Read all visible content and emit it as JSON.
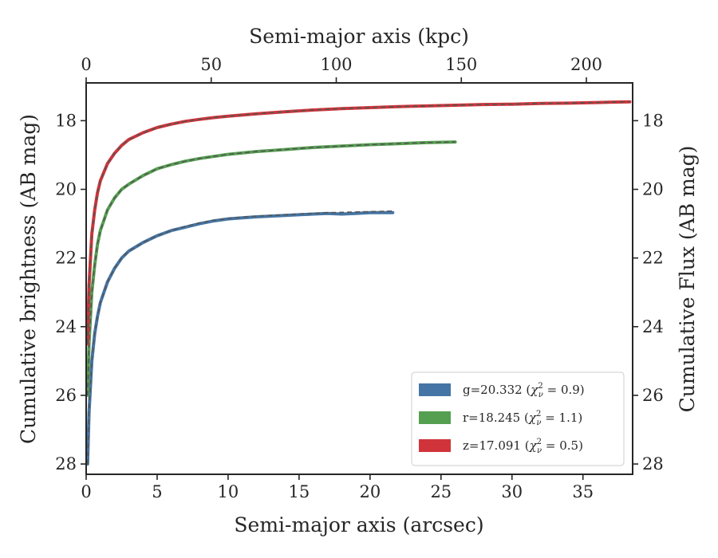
{
  "chart_data": {
    "type": "line",
    "xlabel": "Semi-major axis (arcsec)",
    "x2label": "Semi-major axis (kpc)",
    "ylabel": "Cumulative brightness (AB mag)",
    "y2label": "Cumulative Flux (AB mag)",
    "xlim": [
      0,
      38.5
    ],
    "x2lim": [
      0,
      218.5
    ],
    "ylim": [
      28.3,
      16.9
    ],
    "inverted_y": true,
    "xticks": [
      0,
      5,
      10,
      15,
      20,
      25,
      30,
      35
    ],
    "xticklabels": [
      "0",
      "5",
      "10",
      "15",
      "20",
      "25",
      "30",
      "35"
    ],
    "x2ticks": [
      0,
      50,
      100,
      150,
      200
    ],
    "x2ticklabels": [
      "0",
      "50",
      "100",
      "150",
      "200"
    ],
    "yticks": [
      18,
      20,
      22,
      24,
      26,
      28
    ],
    "yticklabels": [
      "18",
      "20",
      "22",
      "24",
      "26",
      "28"
    ],
    "grid": false,
    "legend_position": "lower-right",
    "series": [
      {
        "name": "g=20.332",
        "chi2": "0.9",
        "color": "#4575a5",
        "x": [
          0.1,
          0.2,
          0.4,
          0.6,
          0.8,
          1.0,
          1.5,
          2.0,
          2.5,
          3.0,
          4.0,
          5.0,
          6.0,
          7.0,
          8.0,
          9.0,
          10.0,
          11.0,
          12.0,
          13.0,
          14.0,
          15.0,
          16.0,
          17.0,
          18.0,
          19.0,
          20.0,
          21.0,
          21.6
        ],
        "y": [
          28.0,
          26.5,
          25.0,
          24.2,
          23.7,
          23.3,
          22.7,
          22.3,
          22.0,
          21.8,
          21.55,
          21.35,
          21.2,
          21.1,
          21.0,
          20.92,
          20.86,
          20.83,
          20.8,
          20.78,
          20.76,
          20.74,
          20.72,
          20.7,
          20.72,
          20.7,
          20.68,
          20.68,
          20.68
        ],
        "model": [
          28.0,
          26.5,
          25.0,
          24.2,
          23.7,
          23.3,
          22.7,
          22.3,
          22.0,
          21.8,
          21.55,
          21.35,
          21.2,
          21.08,
          20.98,
          20.9,
          20.85,
          20.81,
          20.78,
          20.76,
          20.74,
          20.72,
          20.7,
          20.68,
          20.67,
          20.66,
          20.65,
          20.64,
          20.63
        ]
      },
      {
        "name": "r=18.245",
        "chi2": "1.1",
        "color": "#55a050",
        "x": [
          0.1,
          0.2,
          0.4,
          0.6,
          0.8,
          1.0,
          1.5,
          2.0,
          2.5,
          3.0,
          4.0,
          5.0,
          6.0,
          7.0,
          8.0,
          9.0,
          10.0,
          12.0,
          14.0,
          16.0,
          18.0,
          20.0,
          22.0,
          24.0,
          26.0
        ],
        "y": [
          26.0,
          24.5,
          23.0,
          22.2,
          21.6,
          21.2,
          20.6,
          20.25,
          20.0,
          19.85,
          19.6,
          19.4,
          19.28,
          19.18,
          19.1,
          19.04,
          18.98,
          18.9,
          18.84,
          18.78,
          18.74,
          18.7,
          18.67,
          18.64,
          18.62
        ],
        "model": [
          26.0,
          24.5,
          23.0,
          22.2,
          21.6,
          21.2,
          20.6,
          20.25,
          20.0,
          19.85,
          19.6,
          19.4,
          19.28,
          19.18,
          19.1,
          19.04,
          18.98,
          18.9,
          18.84,
          18.78,
          18.74,
          18.7,
          18.67,
          18.64,
          18.62
        ]
      },
      {
        "name": "z=17.091",
        "chi2": "0.5",
        "color": "#d0343a",
        "x": [
          0.1,
          0.2,
          0.4,
          0.6,
          0.8,
          1.0,
          1.5,
          2.0,
          2.5,
          3.0,
          4.0,
          5.0,
          6.0,
          7.0,
          8.0,
          9.0,
          10.0,
          12.0,
          14.0,
          16.0,
          18.0,
          20.0,
          22.0,
          24.0,
          26.0,
          28.0,
          30.0,
          32.0,
          34.0,
          36.0,
          38.3
        ],
        "y": [
          24.5,
          22.8,
          21.3,
          20.6,
          20.1,
          19.75,
          19.25,
          18.95,
          18.72,
          18.55,
          18.35,
          18.2,
          18.1,
          18.02,
          17.96,
          17.91,
          17.87,
          17.8,
          17.74,
          17.69,
          17.65,
          17.62,
          17.59,
          17.57,
          17.55,
          17.53,
          17.52,
          17.5,
          17.49,
          17.47,
          17.45
        ],
        "model": [
          24.5,
          22.8,
          21.3,
          20.6,
          20.1,
          19.75,
          19.25,
          18.95,
          18.72,
          18.55,
          18.35,
          18.2,
          18.1,
          18.02,
          17.96,
          17.91,
          17.87,
          17.8,
          17.74,
          17.69,
          17.65,
          17.62,
          17.59,
          17.57,
          17.55,
          17.53,
          17.52,
          17.5,
          17.49,
          17.47,
          17.45
        ]
      }
    ],
    "model_line_color": "#555555"
  }
}
